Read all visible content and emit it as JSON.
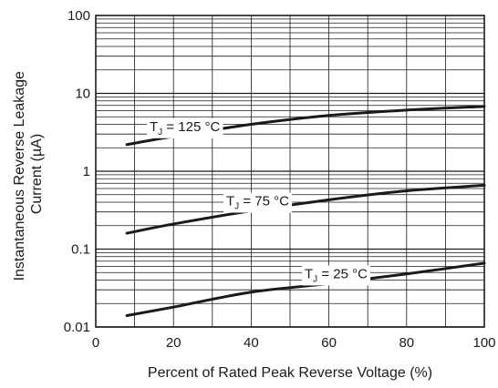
{
  "chart_data": {
    "type": "line",
    "title": "",
    "xlabel": "Percent of Rated Peak Reverse Voltage (%)",
    "ylabel": "Instantaneous Reverse Leakage Current (µA)",
    "ylabel_lines": [
      "Instantaneous Reverse Leakage",
      "Current (µA)"
    ],
    "xlim": [
      0,
      100
    ],
    "ylim": [
      0.01,
      100
    ],
    "yscale": "log",
    "grid": true,
    "x_ticks": [
      0,
      20,
      40,
      60,
      80,
      100
    ],
    "x_tick_labels": [
      "0",
      "20",
      "40",
      "60",
      "80",
      "100"
    ],
    "y_ticks": [
      0.01,
      0.1,
      1,
      10,
      100
    ],
    "y_tick_labels": [
      "0.01",
      "0.1",
      "1",
      "10",
      "100"
    ],
    "series": [
      {
        "label_main": "T",
        "label_sub": "J",
        "label_rest": " = 125 °C",
        "x": [
          8,
          20,
          40,
          60,
          80,
          100
        ],
        "y": [
          2.2,
          2.8,
          4.0,
          5.2,
          6.1,
          6.8
        ]
      },
      {
        "label_main": "T",
        "label_sub": "J",
        "label_rest": " = 75 °C",
        "x": [
          8,
          20,
          40,
          60,
          80,
          100
        ],
        "y": [
          0.16,
          0.21,
          0.31,
          0.43,
          0.56,
          0.66
        ]
      },
      {
        "label_main": "T",
        "label_sub": "J",
        "label_rest": " = 25 °C",
        "x": [
          8,
          20,
          40,
          60,
          80,
          100
        ],
        "y": [
          0.014,
          0.018,
          0.028,
          0.036,
          0.048,
          0.066
        ]
      }
    ],
    "line_color": "#1a1a1a"
  }
}
